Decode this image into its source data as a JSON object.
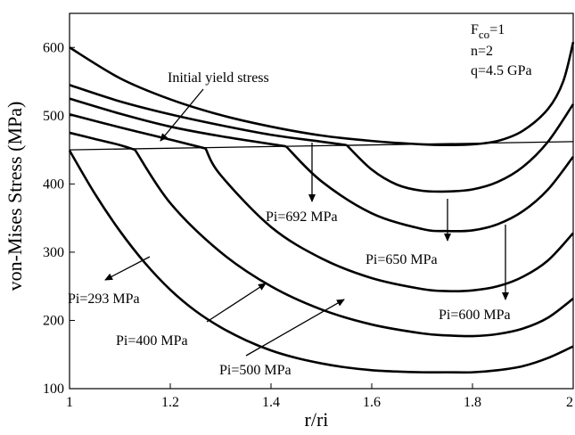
{
  "chart_data": {
    "type": "line",
    "title": "",
    "xlabel": "r/ri",
    "ylabel": "von-Mises Stress (MPa)",
    "xlim": [
      1,
      2
    ],
    "ylim": [
      100,
      650
    ],
    "x_ticks": [
      "1",
      "1.2",
      "1.4",
      "1.6",
      "1.8",
      "2"
    ],
    "y_ticks": [
      "100",
      "200",
      "300",
      "400",
      "500",
      "600"
    ],
    "params": {
      "fco_label": "F",
      "fco_sub": "co",
      "fco_value": "=1",
      "n_label": "n=2",
      "q_label": "q=4.5  GPa"
    },
    "initial_yield": {
      "label": "Initial yield stress",
      "x": [
        1.0,
        2.0
      ],
      "y": [
        450,
        462
      ]
    },
    "series": [
      {
        "label": "Pi=293 MPa",
        "elastic": {
          "x": [
            1.0
          ],
          "y": [
            449
          ]
        },
        "plastic": {
          "x": [
            1.0,
            1.05,
            1.1,
            1.15,
            1.2,
            1.25,
            1.3,
            1.35,
            1.4,
            1.45,
            1.5,
            1.55,
            1.6,
            1.65,
            1.7,
            1.75,
            1.8,
            1.85,
            1.9,
            1.95,
            2.0
          ],
          "y": [
            449,
            386,
            331,
            284,
            245,
            214,
            190,
            171,
            156,
            145,
            137,
            131,
            127,
            125,
            124,
            124,
            124,
            127,
            133,
            145,
            162
          ]
        }
      },
      {
        "label": "Pi=400 MPa",
        "elastic": {
          "x": [
            1.0,
            1.05,
            1.1,
            1.13
          ],
          "y": [
            475,
            466,
            457,
            450
          ]
        },
        "plastic": {
          "x": [
            1.13,
            1.2,
            1.3,
            1.4,
            1.5,
            1.6,
            1.7,
            1.75,
            1.8,
            1.85,
            1.9,
            1.95,
            2.0
          ],
          "y": [
            450,
            372,
            300,
            250,
            216,
            194,
            181,
            178,
            177,
            180,
            188,
            204,
            232
          ]
        }
      },
      {
        "label": "Pi=500 MPa",
        "elastic": {
          "x": [
            1.0,
            1.1,
            1.2,
            1.27
          ],
          "y": [
            502,
            483,
            465,
            452
          ]
        },
        "plastic": {
          "x": [
            1.27,
            1.3,
            1.4,
            1.5,
            1.6,
            1.7,
            1.75,
            1.8,
            1.85,
            1.9,
            1.95,
            2.0
          ],
          "y": [
            452,
            413,
            337,
            291,
            262,
            246,
            243,
            244,
            250,
            264,
            288,
            328
          ]
        }
      },
      {
        "label": "Pi=600 MPa",
        "elastic": {
          "x": [
            1.0,
            1.1,
            1.2,
            1.3,
            1.43
          ],
          "y": [
            525,
            503,
            484,
            470,
            455
          ]
        },
        "plastic": {
          "x": [
            1.43,
            1.5,
            1.6,
            1.7,
            1.75,
            1.8,
            1.85,
            1.9,
            1.95,
            2.0
          ],
          "y": [
            455,
            404,
            357,
            334,
            331,
            332,
            341,
            360,
            392,
            440
          ]
        }
      },
      {
        "label": "Pi=650 MPa",
        "elastic": {
          "x": [
            1.0,
            1.1,
            1.2,
            1.3,
            1.4,
            1.5,
            1.55
          ],
          "y": [
            545,
            521,
            502,
            486,
            472,
            462,
            457
          ]
        },
        "plastic": {
          "x": [
            1.55,
            1.6,
            1.65,
            1.7,
            1.75,
            1.8,
            1.85,
            1.9,
            1.95,
            2.0
          ],
          "y": [
            457,
            421,
            399,
            390,
            389,
            392,
            403,
            425,
            462,
            517
          ]
        }
      },
      {
        "label": "Pi=692 MPa",
        "elastic": {
          "x": [
            1.0,
            1.1,
            1.2,
            1.3,
            1.4,
            1.5,
            1.6,
            1.7,
            1.75,
            1.8,
            1.85,
            1.9,
            1.95,
            1.98,
            2.0
          ],
          "y": [
            600,
            555,
            524,
            501,
            484,
            471,
            463,
            458,
            457,
            458,
            463,
            478,
            510,
            550,
            608
          ]
        },
        "plastic": {
          "x": [],
          "y": []
        }
      }
    ],
    "annotations": [
      {
        "text": "Initial yield stress"
      },
      {
        "text": "Pi=692 MPa"
      },
      {
        "text": "Pi=650 MPa"
      },
      {
        "text": "Pi=600 MPa"
      },
      {
        "text": "Pi=500 MPa"
      },
      {
        "text": "Pi=400 MPa"
      },
      {
        "text": "Pi=293 MPa"
      }
    ]
  }
}
